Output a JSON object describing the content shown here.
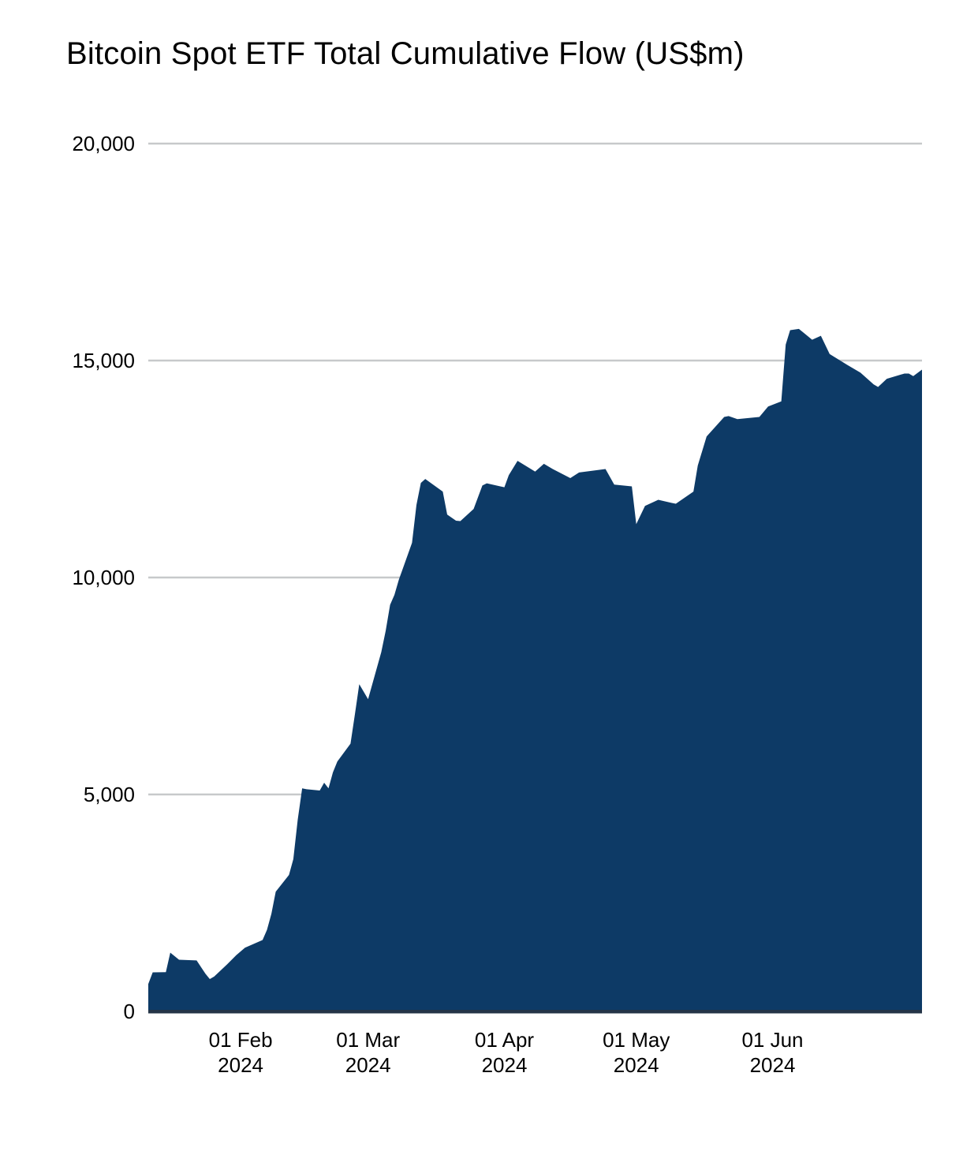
{
  "chart_data": {
    "type": "area",
    "title": "Bitcoin Spot ETF Total Cumulative Flow (US$m)",
    "xlabel": "",
    "ylabel": "",
    "legend": "none",
    "grid": "horizontal",
    "x_domain": [
      "2024-01-11",
      "2024-07-05"
    ],
    "y_domain": [
      0,
      20000
    ],
    "y_ticks": [
      {
        "value": 0,
        "label": "0"
      },
      {
        "value": 5000,
        "label": "5,000"
      },
      {
        "value": 10000,
        "label": "10,000"
      },
      {
        "value": 15000,
        "label": "15,000"
      },
      {
        "value": 20000,
        "label": "20,000"
      }
    ],
    "x_ticks": [
      {
        "date": "2024-02-01",
        "line1": "01 Feb",
        "line2": "2024"
      },
      {
        "date": "2024-03-01",
        "line1": "01 Mar",
        "line2": "2024"
      },
      {
        "date": "2024-04-01",
        "line1": "01 Apr",
        "line2": "2024"
      },
      {
        "date": "2024-05-01",
        "line1": "01 May",
        "line2": "2024"
      },
      {
        "date": "2024-06-01",
        "line1": "01 Jun",
        "line2": "2024"
      }
    ],
    "colors": {
      "area": "#0d3a66",
      "axis_line": "#243447",
      "gridline": "#c7c9cb",
      "text": "#000000",
      "background": "#ffffff"
    },
    "series": [
      {
        "name": "Total Cumulative Flow (US$m)",
        "points": [
          [
            "2024-01-11",
            630
          ],
          [
            "2024-01-12",
            900
          ],
          [
            "2024-01-15",
            905
          ],
          [
            "2024-01-16",
            1355
          ],
          [
            "2024-01-18",
            1190
          ],
          [
            "2024-01-22",
            1175
          ],
          [
            "2024-01-24",
            870
          ],
          [
            "2024-01-25",
            745
          ],
          [
            "2024-01-26",
            805
          ],
          [
            "2024-01-29",
            1090
          ],
          [
            "2024-01-31",
            1295
          ],
          [
            "2024-02-02",
            1470
          ],
          [
            "2024-02-06",
            1645
          ],
          [
            "2024-02-07",
            1880
          ],
          [
            "2024-02-08",
            2250
          ],
          [
            "2024-02-09",
            2760
          ],
          [
            "2024-02-12",
            3145
          ],
          [
            "2024-02-13",
            3510
          ],
          [
            "2024-02-14",
            4420
          ],
          [
            "2024-02-15",
            5140
          ],
          [
            "2024-02-16",
            5120
          ],
          [
            "2024-02-19",
            5090
          ],
          [
            "2024-02-20",
            5270
          ],
          [
            "2024-02-21",
            5140
          ],
          [
            "2024-02-22",
            5510
          ],
          [
            "2024-02-23",
            5760
          ],
          [
            "2024-02-26",
            6170
          ],
          [
            "2024-02-27",
            6850
          ],
          [
            "2024-02-28",
            7540
          ],
          [
            "2024-03-01",
            7195
          ],
          [
            "2024-03-04",
            8280
          ],
          [
            "2024-03-05",
            8770
          ],
          [
            "2024-03-06",
            9370
          ],
          [
            "2024-03-07",
            9600
          ],
          [
            "2024-03-08",
            9950
          ],
          [
            "2024-03-11",
            10800
          ],
          [
            "2024-03-12",
            11670
          ],
          [
            "2024-03-13",
            12180
          ],
          [
            "2024-03-14",
            12270
          ],
          [
            "2024-03-18",
            11980
          ],
          [
            "2024-03-19",
            11450
          ],
          [
            "2024-03-21",
            11310
          ],
          [
            "2024-03-22",
            11300
          ],
          [
            "2024-03-25",
            11580
          ],
          [
            "2024-03-27",
            12120
          ],
          [
            "2024-03-28",
            12170
          ],
          [
            "2024-04-01",
            12080
          ],
          [
            "2024-04-02",
            12360
          ],
          [
            "2024-04-04",
            12690
          ],
          [
            "2024-04-08",
            12440
          ],
          [
            "2024-04-10",
            12620
          ],
          [
            "2024-04-12",
            12500
          ],
          [
            "2024-04-16",
            12290
          ],
          [
            "2024-04-18",
            12420
          ],
          [
            "2024-04-24",
            12500
          ],
          [
            "2024-04-26",
            12140
          ],
          [
            "2024-04-30",
            12100
          ],
          [
            "2024-05-01",
            11230
          ],
          [
            "2024-05-03",
            11650
          ],
          [
            "2024-05-06",
            11790
          ],
          [
            "2024-05-09",
            11720
          ],
          [
            "2024-05-10",
            11700
          ],
          [
            "2024-05-14",
            11980
          ],
          [
            "2024-05-15",
            12580
          ],
          [
            "2024-05-17",
            13250
          ],
          [
            "2024-05-21",
            13700
          ],
          [
            "2024-05-22",
            13720
          ],
          [
            "2024-05-24",
            13650
          ],
          [
            "2024-05-29",
            13700
          ],
          [
            "2024-05-31",
            13940
          ],
          [
            "2024-06-03",
            14060
          ],
          [
            "2024-06-04",
            15370
          ],
          [
            "2024-06-05",
            15700
          ],
          [
            "2024-06-07",
            15730
          ],
          [
            "2024-06-10",
            15480
          ],
          [
            "2024-06-12",
            15570
          ],
          [
            "2024-06-14",
            15150
          ],
          [
            "2024-06-18",
            14900
          ],
          [
            "2024-06-21",
            14720
          ],
          [
            "2024-06-24",
            14450
          ],
          [
            "2024-06-25",
            14390
          ],
          [
            "2024-06-27",
            14580
          ],
          [
            "2024-07-01",
            14700
          ],
          [
            "2024-07-02",
            14700
          ],
          [
            "2024-07-03",
            14640
          ],
          [
            "2024-07-05",
            14790
          ]
        ]
      }
    ]
  }
}
